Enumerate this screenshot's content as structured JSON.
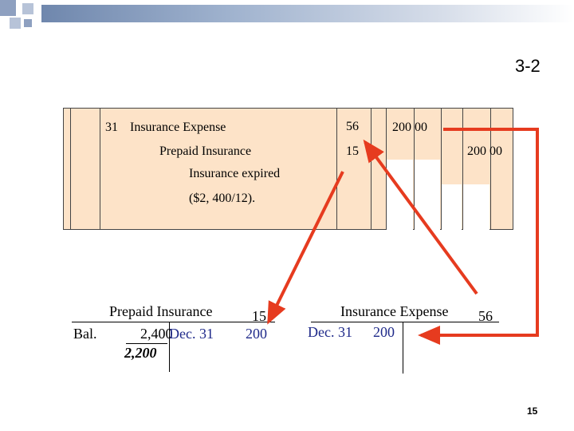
{
  "slide": {
    "label": "3-2",
    "page_number": "15",
    "accent_colors": {
      "header_bar": "#6f87ad",
      "squares": "#8ea0c0",
      "journal_bg": "#fde3c8",
      "arrow": "#e63b1f",
      "t_account_blue": "#1f2a8a"
    }
  },
  "journal": {
    "line1": {
      "day": "31",
      "account": "Insurance Expense",
      "ref": "56",
      "debit": "200 00"
    },
    "line2": {
      "account": "Prepaid Insurance",
      "ref": "15",
      "credit": "200 00"
    },
    "line3": {
      "explanation": "Insurance expired"
    },
    "line4": {
      "explanation": "($2, 400/12)."
    }
  },
  "t_prepaid": {
    "title": "Prepaid Insurance",
    "number": "15",
    "bal_label": "Bal.",
    "bal_amount": "2,400",
    "credit_label": "Dec. 31",
    "credit_amount": "200",
    "ending_balance": "2,200"
  },
  "t_expense": {
    "title": "Insurance Expense",
    "number": "56",
    "debit_label": "Dec. 31",
    "debit_amount": "200"
  }
}
